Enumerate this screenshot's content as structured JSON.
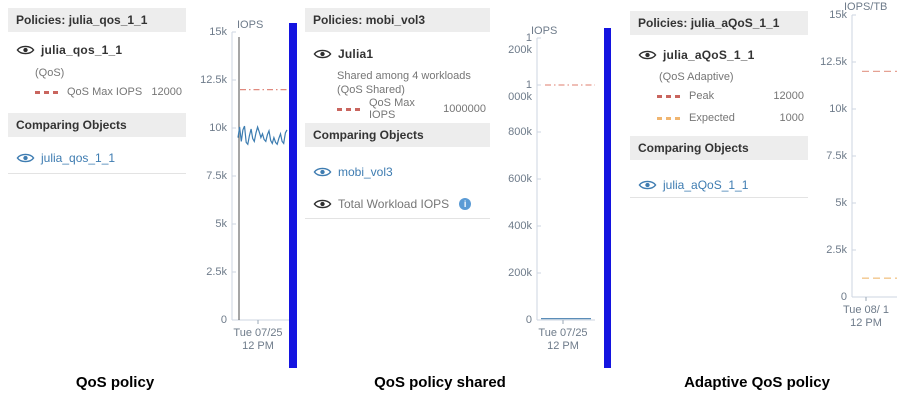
{
  "panels": [
    {
      "header": "Policies: julia_qos_1_1",
      "primary": {
        "name": "julia_qos_1_1",
        "sub": [
          "(QoS)"
        ]
      },
      "legend": [
        {
          "label": "QoS Max IOPS",
          "value": "12000"
        }
      ],
      "comparing_header": "Comparing Objects",
      "comparing": [
        {
          "label": "julia_qos_1_1"
        }
      ],
      "caption": "QoS policy"
    },
    {
      "header": "Policies: mobi_vol3",
      "primary": {
        "name": "Julia1",
        "sub": [
          "Shared among 4 workloads",
          "(QoS Shared)"
        ]
      },
      "legend": [
        {
          "label": "QoS Max IOPS",
          "value": "1000000"
        }
      ],
      "comparing_header": "Comparing Objects",
      "comparing": [
        {
          "label": "mobi_vol3"
        },
        {
          "label": "Total Workload IOPS",
          "info_glyph": "i"
        }
      ],
      "caption": "QoS policy shared"
    },
    {
      "header": "Policies: julia_aQoS_1_1",
      "primary": {
        "name": "julia_aQoS_1_1",
        "sub": [
          "(QoS Adaptive)"
        ]
      },
      "legend": [
        {
          "label": "Peak",
          "value": "12000"
        },
        {
          "label": "Expected",
          "value": "1000"
        }
      ],
      "comparing_header": "Comparing Objects",
      "comparing": [
        {
          "label": "julia_aQoS_1_1"
        }
      ],
      "caption": "Adaptive QoS policy"
    }
  ],
  "colors": {
    "separator_blue": "#1414e0",
    "link_blue": "#3e7cb1",
    "legend_red": "#c9655e",
    "legend_orange": "#f0b570",
    "series_blue": "#3c7cb0",
    "threshold_red": "#e0897e",
    "threshold_orange": "#f2c68b"
  },
  "chart_data": [
    {
      "id": "c1",
      "type": "line",
      "unit": "IOPS",
      "ymax": 15000,
      "yticks": [
        {
          "label": "15k",
          "v": 15000
        },
        {
          "label": "12.5k",
          "v": 12500
        },
        {
          "label": "10k",
          "v": 10000
        },
        {
          "label": "7.5k",
          "v": 7500
        },
        {
          "label": "5k",
          "v": 5000
        },
        {
          "label": "2.5k",
          "v": 2500
        },
        {
          "label": "0",
          "v": 0
        }
      ],
      "thresholds": [
        {
          "label": "QoS Max IOPS",
          "v": 12000,
          "color": "#e0897e",
          "style": "dashdot"
        }
      ],
      "series": [
        {
          "name": "julia_qos_1_1",
          "color": "#3c7cb0",
          "values": [
            9500,
            10050,
            9300,
            9900,
            10100,
            9250,
            9150,
            9600,
            9950,
            9450,
            9300,
            9750,
            10050,
            9800,
            9500,
            9700,
            9400,
            9300,
            9650,
            9850,
            9350,
            9200,
            9500,
            9250,
            9150,
            9450,
            9700,
            9300,
            9200,
            9750,
            9900
          ]
        }
      ],
      "cursor": true,
      "xlabels": [
        "Tue 07/25",
        "12 PM"
      ]
    },
    {
      "id": "c2",
      "type": "line",
      "unit": "IOPS",
      "ymax": 1200000,
      "yticks": [
        {
          "label": "1 200k",
          "v": 1200000
        },
        {
          "label": "1 000k",
          "v": 1000000
        },
        {
          "label": "800k",
          "v": 800000
        },
        {
          "label": "600k",
          "v": 600000
        },
        {
          "label": "400k",
          "v": 400000
        },
        {
          "label": "200k",
          "v": 200000
        },
        {
          "label": "0",
          "v": 0
        }
      ],
      "thresholds": [
        {
          "label": "QoS Max IOPS",
          "v": 1000000,
          "color": "#e5988b",
          "style": "dashdot"
        }
      ],
      "series": [
        {
          "name": "Total Workload IOPS",
          "color": "#5b8db8",
          "values": [
            6000,
            6000,
            6000,
            6000,
            6000,
            6000,
            6000,
            6000,
            6000,
            6000,
            6000,
            6000
          ]
        }
      ],
      "cursor": false,
      "xlabels": [
        "Tue 07/25",
        "12 PM"
      ]
    },
    {
      "id": "c3",
      "type": "line",
      "unit": "IOPS/TB",
      "ymax": 15000,
      "yticks": [
        {
          "label": "15k",
          "v": 15000
        },
        {
          "label": "12.5k",
          "v": 12500
        },
        {
          "label": "10k",
          "v": 10000
        },
        {
          "label": "7.5k",
          "v": 7500
        },
        {
          "label": "5k",
          "v": 5000
        },
        {
          "label": "2.5k",
          "v": 2500
        },
        {
          "label": "0",
          "v": 0
        }
      ],
      "thresholds": [
        {
          "label": "Peak",
          "v": 12000,
          "color": "#e5a193",
          "style": "dashed"
        },
        {
          "label": "Expected",
          "v": 1000,
          "color": "#f2c68b",
          "style": "dashed"
        }
      ],
      "series": [],
      "cursor": false,
      "xlabels": [
        "Tue 08/ 1",
        "12 PM"
      ]
    }
  ]
}
